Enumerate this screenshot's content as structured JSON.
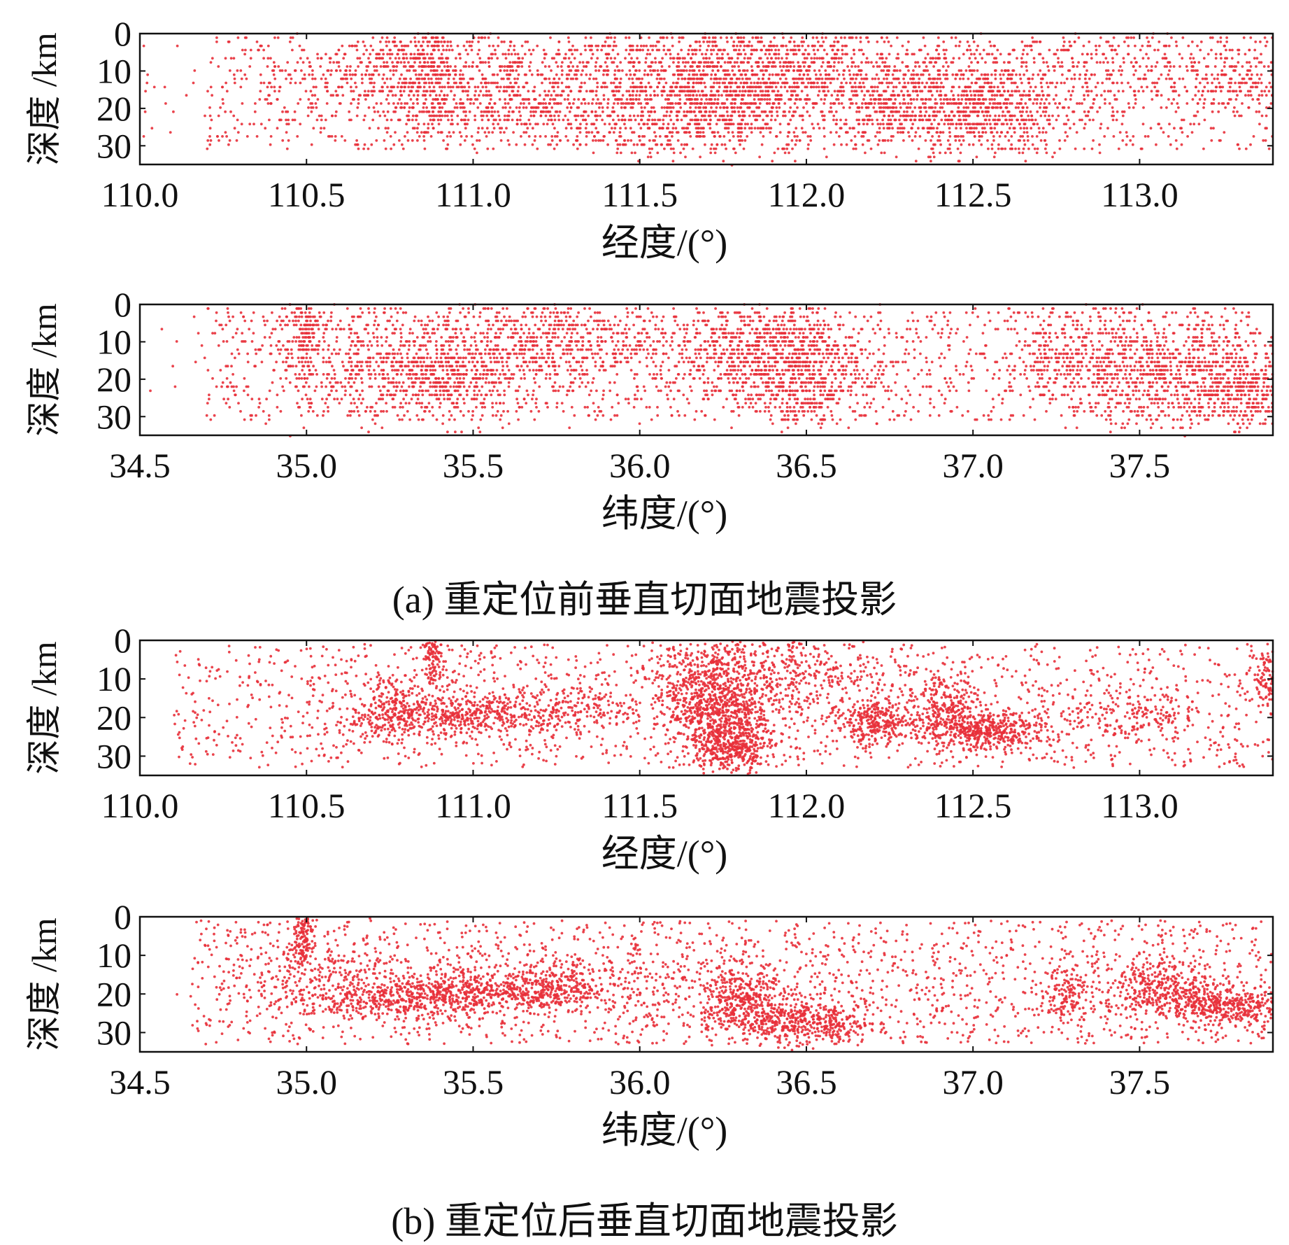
{
  "figure": {
    "caption_a": "(a) 重定位前垂直切面地震投影",
    "caption_b": "(b) 重定位后垂直切面地震投影"
  },
  "colors": {
    "points": "#e8303a",
    "axis": "#111111"
  },
  "chart_data": [
    {
      "id": "a-lon",
      "type": "scatter",
      "title": "",
      "xlabel": "经度/(°)",
      "ylabel": "深度 /km",
      "xlim": [
        110.0,
        113.4
      ],
      "ylim": [
        0,
        35
      ],
      "y_inverted": true,
      "xticks": [
        110.0,
        110.5,
        111.0,
        111.5,
        112.0,
        112.5,
        113.0
      ],
      "xtick_labels": [
        "110.0",
        "110.5",
        "111.0",
        "111.5",
        "112.0",
        "112.5",
        "113.0"
      ],
      "yticks": [
        0,
        10,
        20,
        30
      ],
      "ytick_labels": [
        "0",
        "10",
        "20",
        "30"
      ],
      "grid": false,
      "series": [
        {
          "clusters": [
            {
              "x": 110.87,
              "y": 8,
              "w": 0.04,
              "h": 7,
              "n": 160
            },
            {
              "x": 111.0,
              "y": 20,
              "w": 0.22,
              "h": 4,
              "n": 340
            },
            {
              "x": 111.2,
              "y": 9,
              "w": 0.3,
              "h": 5,
              "n": 420
            },
            {
              "x": 111.72,
              "y": 15,
              "w": 0.16,
              "h": 9,
              "n": 900
            },
            {
              "x": 111.98,
              "y": 10,
              "w": 0.18,
              "h": 6,
              "n": 420
            },
            {
              "x": 112.2,
              "y": 17,
              "w": 0.08,
              "h": 6,
              "n": 180
            },
            {
              "x": 112.5,
              "y": 19,
              "w": 0.14,
              "h": 7,
              "n": 700
            },
            {
              "x": 110.75,
              "y": 8,
              "w": 0.15,
              "h": 4,
              "n": 200
            },
            {
              "x": 112.9,
              "y": 10,
              "w": 0.35,
              "h": 7,
              "n": 320
            },
            {
              "x": 113.3,
              "y": 12,
              "w": 0.1,
              "h": 5,
              "n": 120
            },
            {
              "x": 111.6,
              "y": 25,
              "w": 0.25,
              "h": 4,
              "n": 200
            },
            {
              "x": 111.5,
              "y": 14,
              "w": 1.0,
              "h": 9,
              "n": 600
            }
          ],
          "background_n": 1200,
          "background_xrange": [
            110.2,
            113.4
          ],
          "background_yrange": [
            1,
            31
          ],
          "quantize_depth": true
        }
      ]
    },
    {
      "id": "a-lat",
      "type": "scatter",
      "title": "",
      "xlabel": "纬度/(°)",
      "ylabel": "深度 /km",
      "xlim": [
        34.5,
        37.9
      ],
      "ylim": [
        0,
        35
      ],
      "y_inverted": true,
      "xticks": [
        34.5,
        35.0,
        35.5,
        36.0,
        36.5,
        37.0,
        37.5
      ],
      "xtick_labels": [
        "34.5",
        "35.0",
        "35.5",
        "36.0",
        "36.5",
        "37.0",
        "37.5"
      ],
      "yticks": [
        0,
        10,
        20,
        30
      ],
      "ytick_labels": [
        "0",
        "10",
        "20",
        "30"
      ],
      "grid": false,
      "series": [
        {
          "clusters": [
            {
              "x": 35.0,
              "y": 7,
              "w": 0.03,
              "h": 5,
              "n": 150
            },
            {
              "x": 35.4,
              "y": 18,
              "w": 0.12,
              "h": 7,
              "n": 450
            },
            {
              "x": 35.75,
              "y": 10,
              "w": 0.15,
              "h": 5,
              "n": 350
            },
            {
              "x": 36.35,
              "y": 12,
              "w": 0.12,
              "h": 7,
              "n": 500
            },
            {
              "x": 36.5,
              "y": 20,
              "w": 0.1,
              "h": 7,
              "n": 400
            },
            {
              "x": 37.3,
              "y": 13,
              "w": 0.1,
              "h": 7,
              "n": 300
            },
            {
              "x": 37.6,
              "y": 18,
              "w": 0.15,
              "h": 8,
              "n": 700
            },
            {
              "x": 37.85,
              "y": 22,
              "w": 0.08,
              "h": 5,
              "n": 300
            },
            {
              "x": 36.0,
              "y": 15,
              "w": 0.6,
              "h": 9,
              "n": 500
            },
            {
              "x": 35.2,
              "y": 15,
              "w": 0.2,
              "h": 8,
              "n": 300
            }
          ],
          "background_n": 1300,
          "background_xrange": [
            34.7,
            37.9
          ],
          "background_yrange": [
            1,
            31
          ],
          "quantize_depth": true
        }
      ]
    },
    {
      "id": "b-lon",
      "type": "scatter",
      "title": "",
      "xlabel": "经度/(°)",
      "ylabel": "深度 /km",
      "xlim": [
        110.0,
        113.4
      ],
      "ylim": [
        0,
        35
      ],
      "y_inverted": true,
      "xticks": [
        110.0,
        110.5,
        111.0,
        111.5,
        112.0,
        112.5,
        113.0
      ],
      "xtick_labels": [
        "110.0",
        "110.5",
        "111.0",
        "111.5",
        "112.0",
        "112.5",
        "113.0"
      ],
      "yticks": [
        0,
        10,
        20,
        30
      ],
      "ytick_labels": [
        "0",
        "10",
        "20",
        "30"
      ],
      "grid": false,
      "series": [
        {
          "clusters": [
            {
              "x": 110.88,
              "y": 5,
              "w": 0.015,
              "h": 4,
              "n": 120
            },
            {
              "x": 110.9,
              "y": 20,
              "w": 0.15,
              "h": 2.5,
              "n": 300
            },
            {
              "x": 111.15,
              "y": 18,
              "w": 0.2,
              "h": 3,
              "n": 400
            },
            {
              "x": 111.73,
              "y": 19,
              "w": 0.08,
              "h": 5,
              "n": 600
            },
            {
              "x": 111.78,
              "y": 28,
              "w": 0.05,
              "h": 3,
              "n": 300
            },
            {
              "x": 111.7,
              "y": 8,
              "w": 0.08,
              "h": 5,
              "n": 300
            },
            {
              "x": 112.2,
              "y": 21,
              "w": 0.05,
              "h": 3,
              "n": 250
            },
            {
              "x": 112.52,
              "y": 23,
              "w": 0.1,
              "h": 2.5,
              "n": 500
            },
            {
              "x": 112.42,
              "y": 16,
              "w": 0.06,
              "h": 4,
              "n": 200
            },
            {
              "x": 111.95,
              "y": 10,
              "w": 0.15,
              "h": 8,
              "n": 400
            },
            {
              "x": 110.75,
              "y": 17,
              "w": 0.06,
              "h": 4,
              "n": 150
            },
            {
              "x": 113.0,
              "y": 19,
              "w": 0.1,
              "h": 3,
              "n": 150
            },
            {
              "x": 113.38,
              "y": 9,
              "w": 0.03,
              "h": 4,
              "n": 100
            }
          ],
          "background_n": 1600,
          "background_xrange": [
            110.1,
            113.4
          ],
          "background_yrange": [
            1,
            33
          ],
          "quantize_depth": false
        }
      ]
    },
    {
      "id": "b-lat",
      "type": "scatter",
      "title": "",
      "xlabel": "纬度/(°)",
      "ylabel": "深度 /km",
      "xlim": [
        34.5,
        37.9
      ],
      "ylim": [
        0,
        35
      ],
      "y_inverted": true,
      "xticks": [
        34.5,
        35.0,
        35.5,
        36.0,
        36.5,
        37.0,
        37.5
      ],
      "xtick_labels": [
        "34.5",
        "35.0",
        "35.5",
        "36.0",
        "36.5",
        "37.0",
        "37.5"
      ],
      "yticks": [
        0,
        10,
        20,
        30
      ],
      "ytick_labels": [
        "0",
        "10",
        "20",
        "30"
      ],
      "grid": false,
      "series": [
        {
          "clusters": [
            {
              "x": 34.99,
              "y": 5,
              "w": 0.015,
              "h": 4,
              "n": 120
            },
            {
              "x": 35.2,
              "y": 21,
              "w": 0.12,
              "h": 2.5,
              "n": 250
            },
            {
              "x": 35.45,
              "y": 20,
              "w": 0.12,
              "h": 3,
              "n": 400
            },
            {
              "x": 35.72,
              "y": 19,
              "w": 0.08,
              "h": 3,
              "n": 300
            },
            {
              "x": 36.3,
              "y": 21,
              "w": 0.06,
              "h": 4,
              "n": 300
            },
            {
              "x": 36.48,
              "y": 27,
              "w": 0.1,
              "h": 3,
              "n": 450
            },
            {
              "x": 37.28,
              "y": 20,
              "w": 0.03,
              "h": 4,
              "n": 120
            },
            {
              "x": 37.55,
              "y": 18,
              "w": 0.08,
              "h": 4,
              "n": 300
            },
            {
              "x": 37.75,
              "y": 23,
              "w": 0.12,
              "h": 2.5,
              "n": 450
            },
            {
              "x": 36.0,
              "y": 18,
              "w": 0.5,
              "h": 6,
              "n": 400
            },
            {
              "x": 35.0,
              "y": 15,
              "w": 0.15,
              "h": 6,
              "n": 200
            }
          ],
          "background_n": 1700,
          "background_xrange": [
            34.65,
            37.9
          ],
          "background_yrange": [
            1,
            33
          ],
          "quantize_depth": false
        }
      ]
    }
  ]
}
